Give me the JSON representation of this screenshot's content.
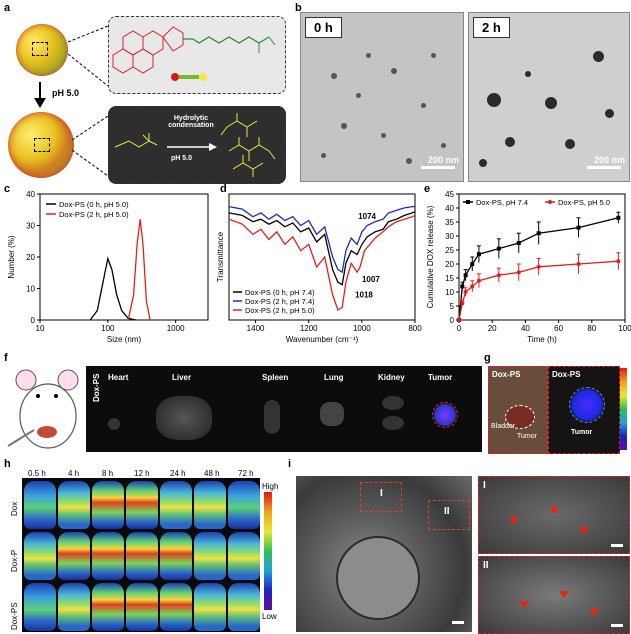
{
  "panels": {
    "a": "a",
    "b": "b",
    "c": "c",
    "d": "d",
    "e": "e",
    "f": "f",
    "g": "g",
    "h": "h",
    "i": "i"
  },
  "a": {
    "ph_arrow": "pH 5.0",
    "reaction": "Hydrolytic condensation",
    "reaction_ph": "pH 5.0"
  },
  "b": {
    "tag_left": "0 h",
    "tag_right": "2 h",
    "scale_left": "200 nm",
    "scale_right": "200 nm"
  },
  "f": {
    "row_label": "Dox-PS",
    "organs": [
      "Heart",
      "Liver",
      "Spleen",
      "Lung",
      "Kidney",
      "Tumor"
    ]
  },
  "g": {
    "left_title": "Dox-PS",
    "right_title": "Dox-PS",
    "bladder": "Bladder",
    "tumor_left": "Tumor",
    "tumor_right": "Tumor"
  },
  "h": {
    "times": [
      "0.5 h",
      "4 h",
      "8 h",
      "12 h",
      "24 h",
      "48 h",
      "72 h"
    ],
    "rows": [
      "Dox",
      "Dox-P",
      "Dox-PS"
    ],
    "colorbar_high": "High",
    "colorbar_low": "Low"
  },
  "i": {
    "box1": "I",
    "box2": "II",
    "inset1": "I",
    "inset2": "II"
  },
  "chart_data": [
    {
      "panel": "c",
      "type": "line",
      "xlabel": "Size (nm)",
      "ylabel": "Number (%)",
      "xscale": "log",
      "xlim": [
        10,
        3000
      ],
      "ylim": [
        0,
        40
      ],
      "xticks": [
        "10",
        "100",
        "1000"
      ],
      "yticks": [
        "0",
        "10",
        "20",
        "30",
        "40"
      ],
      "legend": "top-left",
      "series": [
        {
          "name": "Dox-PS (0 h, pH 5.0)",
          "color": "#000000",
          "x": [
            55,
            70,
            85,
            100,
            115,
            135,
            160,
            200,
            260
          ],
          "y": [
            0,
            3,
            12,
            19.5,
            16,
            8,
            3,
            0.5,
            0
          ]
        },
        {
          "name": "Dox-PS (2 h, pH 5.0)",
          "color": "#e0201c",
          "x": [
            200,
            240,
            270,
            300,
            330,
            370,
            420
          ],
          "y": [
            0,
            8,
            24,
            32,
            24,
            6,
            0
          ]
        }
      ]
    },
    {
      "panel": "d",
      "type": "line",
      "xlabel": "Wavenumber (cm⁻¹)",
      "ylabel": "Transmittance",
      "xlim": [
        1500,
        800
      ],
      "xticks": [
        "1400",
        "1200",
        "1000",
        "800"
      ],
      "legend": "bottom-left",
      "annotations": [
        "1074",
        "1007",
        "1018"
      ],
      "series": [
        {
          "name": "Dox-PS (0 h, pH 7.4)",
          "color": "#000000",
          "x": [
            1500,
            1450,
            1410,
            1380,
            1350,
            1320,
            1290,
            1260,
            1230,
            1200,
            1170,
            1140,
            1110,
            1090,
            1074,
            1060,
            1040,
            1018,
            1000,
            980,
            950,
            920,
            900,
            870,
            840,
            810,
            800
          ],
          "y": [
            0.85,
            0.83,
            0.78,
            0.8,
            0.76,
            0.79,
            0.74,
            0.77,
            0.7,
            0.73,
            0.62,
            0.68,
            0.4,
            0.3,
            0.28,
            0.45,
            0.55,
            0.52,
            0.6,
            0.66,
            0.7,
            0.72,
            0.78,
            0.8,
            0.83,
            0.85,
            0.86
          ]
        },
        {
          "name": "Dox-PS (2 h, pH 7.4)",
          "color": "#1a2fb0",
          "x": [
            1500,
            1450,
            1410,
            1380,
            1350,
            1320,
            1290,
            1260,
            1230,
            1200,
            1170,
            1140,
            1110,
            1090,
            1074,
            1060,
            1040,
            1018,
            1000,
            980,
            950,
            920,
            900,
            870,
            840,
            810,
            800
          ],
          "y": [
            0.9,
            0.88,
            0.82,
            0.85,
            0.8,
            0.84,
            0.79,
            0.82,
            0.75,
            0.79,
            0.68,
            0.74,
            0.5,
            0.4,
            0.38,
            0.55,
            0.65,
            0.6,
            0.7,
            0.75,
            0.78,
            0.8,
            0.85,
            0.87,
            0.89,
            0.9,
            0.9
          ]
        },
        {
          "name": "Dox-PS (2 h, pH 5.0)",
          "color": "#e0201c",
          "x": [
            1500,
            1450,
            1410,
            1380,
            1350,
            1320,
            1290,
            1260,
            1230,
            1200,
            1170,
            1140,
            1110,
            1090,
            1074,
            1060,
            1040,
            1018,
            1007,
            990,
            970,
            950,
            920,
            900,
            870,
            840,
            810,
            800
          ],
          "y": [
            0.8,
            0.76,
            0.68,
            0.72,
            0.64,
            0.7,
            0.6,
            0.66,
            0.55,
            0.6,
            0.42,
            0.5,
            0.2,
            0.08,
            0.1,
            0.3,
            0.45,
            0.38,
            0.42,
            0.55,
            0.6,
            0.65,
            0.7,
            0.74,
            0.78,
            0.8,
            0.82,
            0.83
          ]
        }
      ]
    },
    {
      "panel": "e",
      "type": "line",
      "xlabel": "Time (h)",
      "ylabel": "Cumulative DOX release (%)",
      "xlim": [
        0,
        100
      ],
      "ylim": [
        0,
        45
      ],
      "xticks": [
        "0",
        "20",
        "40",
        "60",
        "80",
        "100"
      ],
      "yticks": [
        "0",
        "5",
        "10",
        "15",
        "20",
        "25",
        "30",
        "35",
        "40",
        "45"
      ],
      "legend": "top",
      "series": [
        {
          "name": "Dox-PS, pH 7.4",
          "color": "#000000",
          "marker": "square",
          "x": [
            0,
            2,
            4,
            8,
            12,
            24,
            36,
            48,
            72,
            96
          ],
          "y": [
            0,
            12,
            16,
            20,
            23.5,
            25.5,
            27.5,
            31,
            33,
            36.5
          ],
          "err": [
            0,
            1.5,
            2,
            2.5,
            3,
            3.5,
            3.5,
            4,
            3.5,
            2
          ]
        },
        {
          "name": "Dox-PS, pH 5.0",
          "color": "#e0201c",
          "marker": "circle",
          "x": [
            0,
            2,
            4,
            8,
            12,
            24,
            36,
            48,
            72,
            96
          ],
          "y": [
            0,
            6,
            10,
            12,
            14,
            16,
            17,
            19,
            20,
            21
          ],
          "err": [
            0,
            1,
            1.5,
            2,
            2.5,
            2.5,
            3,
            3,
            3.5,
            3
          ]
        }
      ]
    }
  ]
}
